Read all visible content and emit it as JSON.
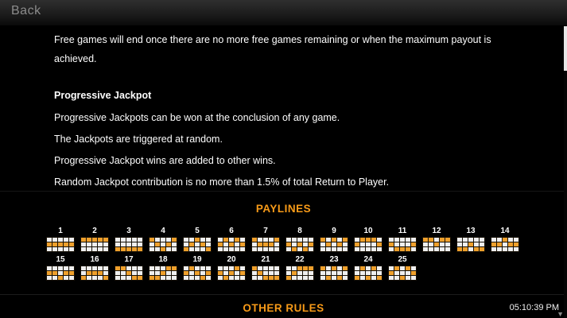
{
  "header": {
    "back_label": "Back"
  },
  "rules": {
    "intro": "Free games will end once there are no more free games remaining or when the maximum payout is achieved.",
    "jackpot_heading": "Progressive Jackpot",
    "jackpot_rules": [
      "Progressive Jackpots can be won at the conclusion of any game.",
      "The Jackpots are triggered at random.",
      "Progressive Jackpot wins are added to other wins.",
      "Random Jackpot contribution is no more than 1.5% of total Return to Player."
    ]
  },
  "paylines": {
    "title": "PAYLINES",
    "grid": {
      "columns": 5,
      "rows": 3
    },
    "first_row_count": 14,
    "colors": {
      "active_cell": "#EFA02C",
      "inactive_cell": "#EFEFEF"
    },
    "lines": [
      {
        "num": "1",
        "pattern": [
          1,
          1,
          1,
          1,
          1
        ]
      },
      {
        "num": "2",
        "pattern": [
          0,
          0,
          0,
          0,
          0
        ]
      },
      {
        "num": "3",
        "pattern": [
          2,
          2,
          2,
          2,
          2
        ]
      },
      {
        "num": "4",
        "pattern": [
          0,
          1,
          2,
          1,
          0
        ]
      },
      {
        "num": "5",
        "pattern": [
          2,
          1,
          0,
          1,
          2
        ]
      },
      {
        "num": "6",
        "pattern": [
          1,
          0,
          1,
          0,
          1
        ]
      },
      {
        "num": "7",
        "pattern": [
          0,
          1,
          1,
          1,
          0
        ]
      },
      {
        "num": "8",
        "pattern": [
          1,
          2,
          1,
          2,
          1
        ]
      },
      {
        "num": "9",
        "pattern": [
          0,
          1,
          0,
          1,
          0
        ]
      },
      {
        "num": "10",
        "pattern": [
          1,
          0,
          0,
          0,
          1
        ]
      },
      {
        "num": "11",
        "pattern": [
          1,
          2,
          2,
          2,
          1
        ]
      },
      {
        "num": "12",
        "pattern": [
          0,
          0,
          1,
          0,
          0
        ]
      },
      {
        "num": "13",
        "pattern": [
          2,
          2,
          1,
          2,
          2
        ]
      },
      {
        "num": "14",
        "pattern": [
          1,
          1,
          0,
          1,
          1
        ]
      },
      {
        "num": "15",
        "pattern": [
          1,
          1,
          2,
          1,
          1
        ]
      },
      {
        "num": "16",
        "pattern": [
          2,
          1,
          1,
          1,
          2
        ]
      },
      {
        "num": "17",
        "pattern": [
          0,
          0,
          1,
          2,
          2
        ]
      },
      {
        "num": "18",
        "pattern": [
          2,
          2,
          1,
          0,
          0
        ]
      },
      {
        "num": "19",
        "pattern": [
          1,
          0,
          1,
          2,
          1
        ]
      },
      {
        "num": "20",
        "pattern": [
          1,
          2,
          1,
          0,
          1
        ]
      },
      {
        "num": "21",
        "pattern": [
          0,
          1,
          2,
          2,
          2
        ]
      },
      {
        "num": "22",
        "pattern": [
          2,
          1,
          0,
          0,
          0
        ]
      },
      {
        "num": "23",
        "pattern": [
          0,
          2,
          0,
          2,
          0
        ]
      },
      {
        "num": "24",
        "pattern": [
          2,
          0,
          2,
          0,
          2
        ]
      },
      {
        "num": "25",
        "pattern": [
          1,
          0,
          2,
          0,
          1
        ]
      }
    ]
  },
  "other_rules": {
    "title": "OTHER RULES"
  },
  "footer": {
    "time": "05:10:39 PM"
  },
  "colors": {
    "accent_orange": "#F79A18",
    "background": "#000000",
    "text": "#FFFFFF"
  }
}
